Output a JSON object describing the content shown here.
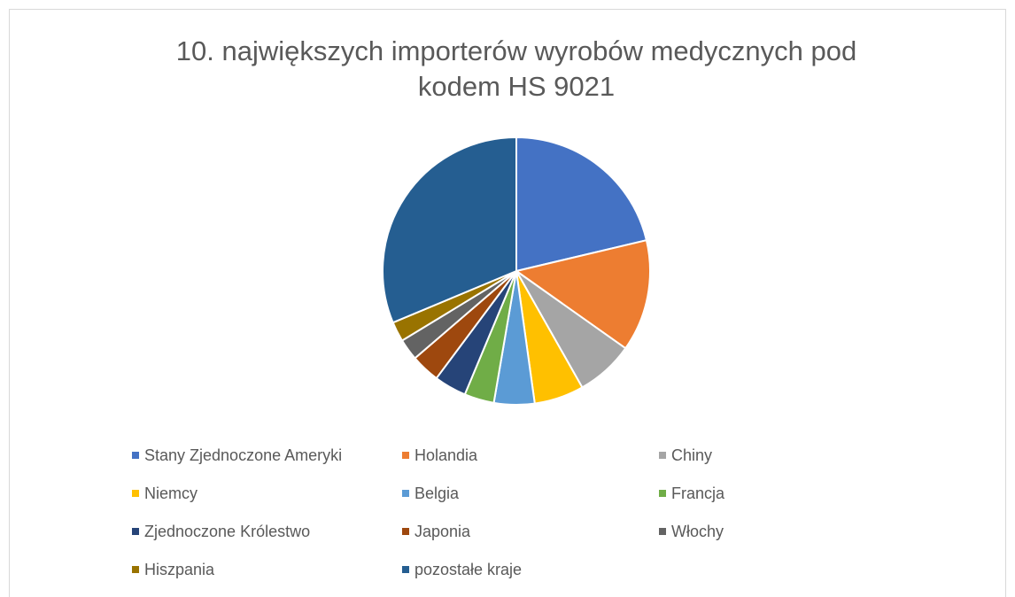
{
  "chart_data": {
    "type": "pie",
    "title": "10. największych importerów wyrobów medycznych pod kodem HS 9021",
    "categories": [
      "Stany Zjednoczone Ameryki",
      "Holandia",
      "Chiny",
      "Niemcy",
      "Belgia",
      "Francja",
      "Zjednoczone Królestwo",
      "Japonia",
      "Włochy",
      "Hiszpania",
      "pozostałe kraje"
    ],
    "values": [
      21.3,
      13.5,
      7,
      6,
      4.9,
      3.6,
      3.9,
      3.5,
      2.6,
      2.4,
      31.3
    ],
    "colors": [
      "#4472c4",
      "#ed7d31",
      "#a5a5a5",
      "#ffc000",
      "#5b9bd5",
      "#70ad47",
      "#264478",
      "#9e480e",
      "#636363",
      "#997300",
      "#255e91"
    ],
    "legend": "bottom"
  }
}
